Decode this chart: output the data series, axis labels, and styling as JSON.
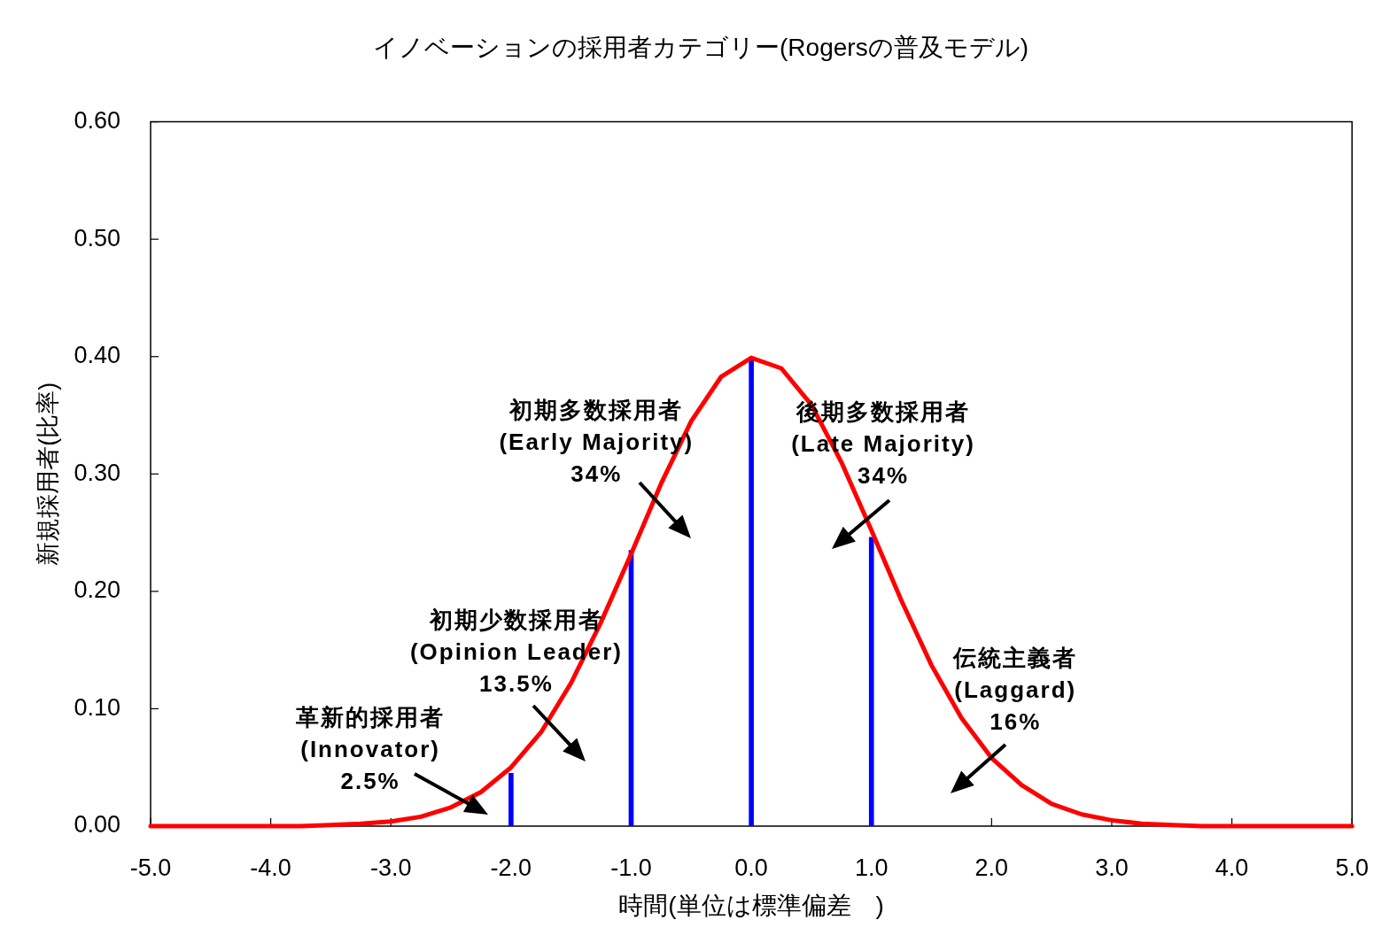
{
  "chart_data": {
    "type": "line",
    "title": "イノベーションの採用者カテゴリー(Rogersの普及モデル)",
    "xlabel": "時間(単位は標準偏差　)",
    "ylabel": "新規採用者(比率)",
    "xlim": [
      -5,
      5
    ],
    "ylim": [
      0,
      0.6
    ],
    "xticks": [
      {
        "value": -5,
        "label": "-5.0"
      },
      {
        "value": -4,
        "label": "-4.0"
      },
      {
        "value": -3,
        "label": "-3.0"
      },
      {
        "value": -2,
        "label": "-2.0"
      },
      {
        "value": -1,
        "label": "-1.0"
      },
      {
        "value": 0,
        "label": "0.0"
      },
      {
        "value": 1,
        "label": "1.0"
      },
      {
        "value": 2,
        "label": "2.0"
      },
      {
        "value": 3,
        "label": "3.0"
      },
      {
        "value": 4,
        "label": "4.0"
      },
      {
        "value": 5,
        "label": "5.0"
      }
    ],
    "yticks": [
      {
        "value": 0,
        "label": "0.00"
      },
      {
        "value": 0.1,
        "label": "0.10"
      },
      {
        "value": 0.2,
        "label": "0.20"
      },
      {
        "value": 0.3,
        "label": "0.30"
      },
      {
        "value": 0.4,
        "label": "0.40"
      },
      {
        "value": 0.5,
        "label": "0.50"
      },
      {
        "value": 0.6,
        "label": "0.60"
      }
    ],
    "marker": "none",
    "line_style": "solid",
    "series": [
      {
        "color": "#ff0000",
        "x": [
          -5,
          -4.75,
          -4.5,
          -4.25,
          -4,
          -3.75,
          -3.5,
          -3.25,
          -3,
          -2.75,
          -2.5,
          -2.25,
          -2,
          -1.75,
          -1.5,
          -1.25,
          -1,
          -0.75,
          -0.5,
          -0.25,
          0,
          0.25,
          0.5,
          0.75,
          1,
          1.25,
          1.5,
          1.75,
          2,
          2.25,
          2.5,
          2.75,
          3,
          3.25,
          3.5,
          3.75,
          4,
          4.25,
          4.5,
          4.75,
          5
        ],
        "values": [
          0,
          0,
          0,
          0,
          0,
          0,
          0.001,
          0.002,
          0.004,
          0.008,
          0.016,
          0.029,
          0.05,
          0.08,
          0.122,
          0.174,
          0.232,
          0.292,
          0.345,
          0.383,
          0.399,
          0.39,
          0.359,
          0.31,
          0.252,
          0.192,
          0.137,
          0.092,
          0.058,
          0.035,
          0.019,
          0.01,
          0.005,
          0.002,
          0.001,
          0,
          0,
          0,
          0,
          0,
          0
        ]
      },
      {
        "type": "bar",
        "color": "#0000ff",
        "x": [
          -2,
          -1,
          0,
          1
        ],
        "values": [
          0.045,
          0.235,
          0.397,
          0.246
        ]
      }
    ],
    "annotations": [
      "革新的採用者\n(Innovator)\n2.5%",
      "初期少数採用者\n(Opinion Leader)\n13.5%",
      "初期多数採用者\n(Early Majority)\n34%",
      "後期多数採用者\n(Late Majority)\n34%",
      "伝統主義者\n(Laggard)\n16%"
    ]
  }
}
